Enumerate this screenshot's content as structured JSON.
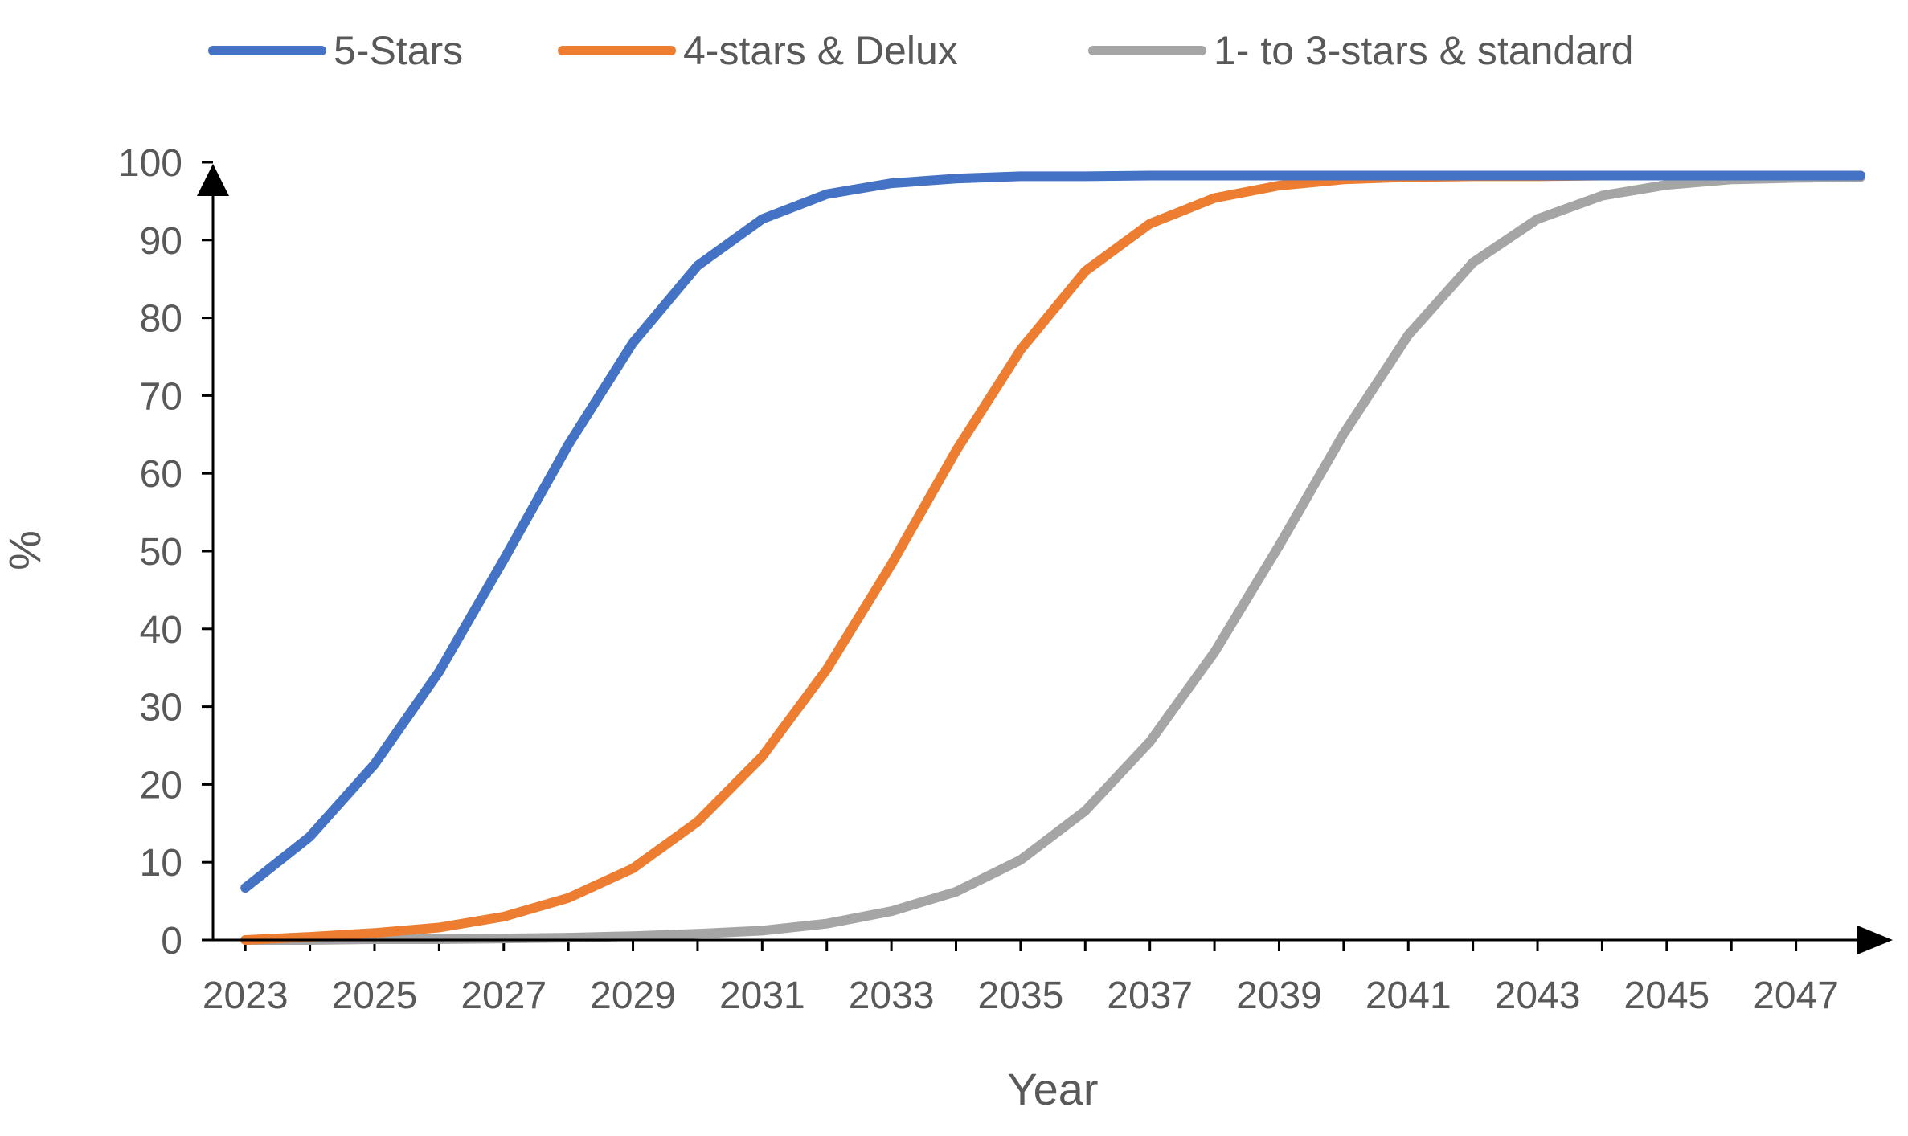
{
  "chart_data": {
    "type": "line",
    "title": "",
    "xlabel": "Year",
    "ylabel": "%",
    "xlim": [
      2022.5,
      2048
    ],
    "ylim": [
      0,
      100
    ],
    "x_ticks": [
      2023,
      2025,
      2027,
      2029,
      2031,
      2033,
      2035,
      2037,
      2039,
      2041,
      2043,
      2045,
      2047
    ],
    "y_ticks": [
      0,
      10,
      20,
      30,
      40,
      50,
      60,
      70,
      80,
      90,
      100
    ],
    "grid": false,
    "legend_position": "top",
    "x": [
      2023,
      2024,
      2025,
      2026,
      2027,
      2028,
      2029,
      2030,
      2031,
      2032,
      2033,
      2034,
      2035,
      2036,
      2037,
      2038,
      2039,
      2040,
      2041,
      2042,
      2043,
      2044,
      2045,
      2046,
      2047,
      2048
    ],
    "series": [
      {
        "name": "5-Stars",
        "color": "#4472C4",
        "values": [
          6.7,
          13.3,
          22.6,
          34.5,
          48.9,
          63.7,
          76.8,
          86.7,
          92.7,
          95.9,
          97.3,
          97.9,
          98.2,
          98.2,
          98.3,
          98.3,
          98.3,
          98.3,
          98.3,
          98.3,
          98.3,
          98.3,
          98.3,
          98.3,
          98.3,
          98.3
        ]
      },
      {
        "name": "4-stars & Delux",
        "color": "#ED7D31",
        "values": [
          0.0,
          0.4,
          0.9,
          1.6,
          3.0,
          5.4,
          9.2,
          15.2,
          23.6,
          34.8,
          48.3,
          62.9,
          75.9,
          86.0,
          92.1,
          95.4,
          97.0,
          97.8,
          98.1,
          98.2,
          98.2,
          98.3,
          98.3,
          98.3,
          98.3,
          98.3
        ]
      },
      {
        "name": "1- to 3-stars & standard",
        "color": "#A5A5A5",
        "values": [
          0.0,
          0.0,
          0.1,
          0.1,
          0.2,
          0.3,
          0.5,
          0.8,
          1.2,
          2.1,
          3.7,
          6.2,
          10.3,
          16.6,
          25.5,
          37.0,
          50.7,
          65.1,
          77.8,
          87.1,
          92.7,
          95.7,
          97.1,
          97.8,
          98.0,
          98.1
        ]
      }
    ]
  }
}
